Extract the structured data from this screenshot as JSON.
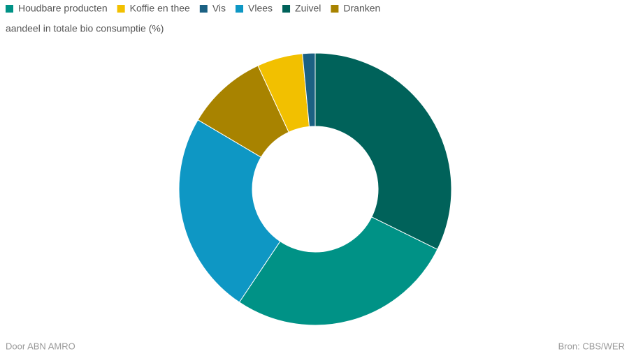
{
  "chart_data": {
    "type": "donut",
    "subtitle": "aandeel in totale bio consumptie (%)",
    "categories": [
      "Houdbare producten",
      "Koffie en thee",
      "Vis",
      "Vlees",
      "Zuivel",
      "Dranken"
    ],
    "values": [
      27.1,
      5.4,
      1.5,
      24.1,
      32.3,
      9.6
    ],
    "colors": [
      "#009286",
      "#f2c000",
      "#1b6183",
      "#0e97c4",
      "#00625a",
      "#a88300"
    ],
    "credit": "Door ABN AMRO",
    "source": "Bron:  CBS/WER"
  }
}
